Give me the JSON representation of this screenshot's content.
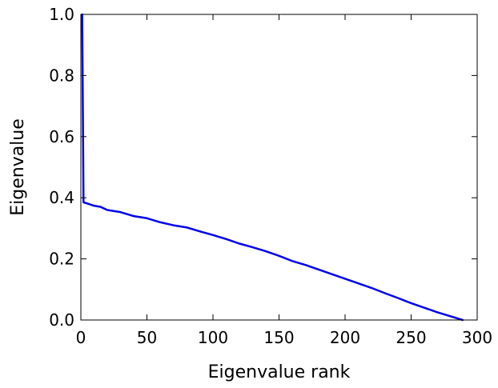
{
  "chart_data": {
    "type": "line",
    "xlabel": "Eigenvalue rank",
    "ylabel": "Eigenvalue",
    "xlim": [
      0,
      300
    ],
    "ylim": [
      0.0,
      1.0
    ],
    "xticks": [
      0,
      50,
      100,
      150,
      200,
      250,
      300
    ],
    "yticks": [
      0.0,
      0.2,
      0.4,
      0.6,
      0.8,
      1.0
    ],
    "xtick_labels": [
      "0",
      "50",
      "100",
      "150",
      "200",
      "250",
      "300"
    ],
    "ytick_labels": [
      "0.0",
      "0.2",
      "0.4",
      "0.6",
      "0.8",
      "1.0"
    ],
    "grid": false,
    "series": [
      {
        "color": "#0000ee",
        "x": [
          1,
          2,
          5,
          10,
          15,
          20,
          30,
          40,
          50,
          60,
          70,
          80,
          90,
          100,
          110,
          120,
          130,
          140,
          150,
          160,
          170,
          180,
          190,
          200,
          210,
          220,
          230,
          240,
          250,
          260,
          270,
          280,
          289
        ],
        "y": [
          1.0,
          0.385,
          0.381,
          0.374,
          0.37,
          0.36,
          0.353,
          0.34,
          0.333,
          0.32,
          0.31,
          0.303,
          0.29,
          0.278,
          0.265,
          0.25,
          0.238,
          0.225,
          0.21,
          0.193,
          0.18,
          0.165,
          0.15,
          0.135,
          0.12,
          0.105,
          0.088,
          0.072,
          0.055,
          0.04,
          0.025,
          0.012,
          0.0
        ]
      }
    ]
  }
}
